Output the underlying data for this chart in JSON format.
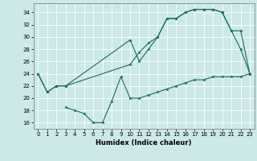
{
  "title": "",
  "xlabel": "Humidex (Indice chaleur)",
  "ylabel": "",
  "bg_color": "#cce8e8",
  "grid_color": "#ffffff",
  "line_color": "#1a6b60",
  "xlim": [
    -0.5,
    23.5
  ],
  "ylim": [
    15.0,
    35.5
  ],
  "yticks": [
    16,
    18,
    20,
    22,
    24,
    26,
    28,
    30,
    32,
    34
  ],
  "xticks": [
    0,
    1,
    2,
    3,
    4,
    5,
    6,
    7,
    8,
    9,
    10,
    11,
    12,
    13,
    14,
    15,
    16,
    17,
    18,
    19,
    20,
    21,
    22,
    23
  ],
  "line1_x": [
    0,
    1,
    2,
    3,
    10,
    11,
    12,
    13,
    14,
    15,
    16,
    17,
    18,
    19,
    20,
    21,
    22,
    23
  ],
  "line1_y": [
    24,
    21,
    22,
    22,
    29.5,
    26,
    28,
    30,
    33,
    33,
    34,
    34.5,
    34.5,
    34.5,
    34,
    31,
    28,
    24
  ],
  "line2_x": [
    0,
    1,
    2,
    3,
    10,
    11,
    12,
    13,
    14,
    15,
    16,
    17,
    18,
    19,
    20,
    21,
    22,
    23
  ],
  "line2_y": [
    24,
    21,
    22,
    22,
    25.5,
    27.5,
    29,
    30,
    33,
    33,
    34,
    34.5,
    34.5,
    34.5,
    34,
    31,
    31,
    24
  ],
  "line3_x": [
    3,
    4,
    5,
    6,
    7,
    8,
    9,
    10,
    11,
    12,
    13,
    14,
    15,
    16,
    17,
    18,
    19,
    20,
    21,
    22,
    23
  ],
  "line3_y": [
    18.5,
    18,
    17.5,
    16,
    16,
    19.5,
    23.5,
    20,
    20,
    20.5,
    21,
    21.5,
    22,
    22.5,
    23,
    23,
    23.5,
    23.5,
    23.5,
    23.5,
    24
  ],
  "marker_size": 2.5,
  "line_width": 0.8,
  "tick_fontsize": 5,
  "xlabel_fontsize": 6
}
